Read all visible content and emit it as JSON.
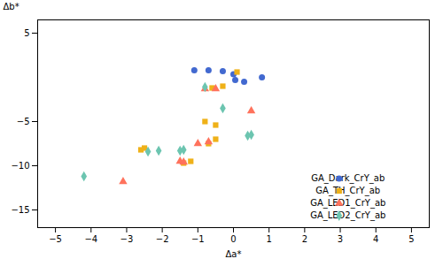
{
  "chart_data": {
    "type": "scatter",
    "xlabel": "Δa*",
    "ylabel": "Δb*",
    "xlim": [
      -5.5,
      5.5
    ],
    "ylim": [
      -17,
      6.5
    ],
    "xticks": [
      -5,
      -4,
      -3,
      -2,
      -1,
      0,
      1,
      2,
      3,
      4,
      5
    ],
    "yticks": [
      -15,
      -10,
      -5,
      5
    ],
    "grid": false,
    "legend": "lower right",
    "series": [
      {
        "name": "GA_Dark_CrY_ab",
        "marker": "circle",
        "values": [
          [
            -1.1,
            0.8
          ],
          [
            -0.7,
            0.8
          ],
          [
            -0.3,
            0.7
          ],
          [
            0.0,
            0.35
          ],
          [
            0.05,
            -0.3
          ],
          [
            0.8,
            0.0
          ],
          [
            0.3,
            -0.5
          ]
        ]
      },
      {
        "name": "GA_TH_CrY_ab",
        "marker": "square",
        "values": [
          [
            0.1,
            0.6
          ],
          [
            -0.3,
            -1.0
          ],
          [
            -0.6,
            -1.2
          ],
          [
            -0.8,
            -5.0
          ],
          [
            -0.5,
            -5.4
          ],
          [
            -0.5,
            -7.0
          ],
          [
            -0.7,
            -7.5
          ],
          [
            -2.5,
            -8.0
          ],
          [
            -2.6,
            -8.2
          ],
          [
            -1.2,
            -9.5
          ],
          [
            -1.4,
            -9.7
          ]
        ]
      },
      {
        "name": "GA_LED1_CrY_ab",
        "marker": "triangle",
        "values": [
          [
            -0.8,
            -1.3
          ],
          [
            -0.5,
            -1.3
          ],
          [
            0.5,
            -3.8
          ],
          [
            -0.7,
            -7.3
          ],
          [
            -1.0,
            -7.5
          ],
          [
            -1.5,
            -9.5
          ],
          [
            -1.4,
            -9.6
          ],
          [
            -3.1,
            -11.8
          ]
        ]
      },
      {
        "name": "GA_LED2_CrY_ab",
        "marker": "diamond",
        "values": [
          [
            -0.8,
            -1.1
          ],
          [
            -0.3,
            -3.5
          ],
          [
            0.5,
            -6.5
          ],
          [
            0.4,
            -6.6
          ],
          [
            -1.4,
            -8.2
          ],
          [
            -1.5,
            -8.3
          ],
          [
            -2.1,
            -8.3
          ],
          [
            -2.4,
            -8.4
          ],
          [
            -4.2,
            -11.2
          ]
        ]
      }
    ]
  }
}
